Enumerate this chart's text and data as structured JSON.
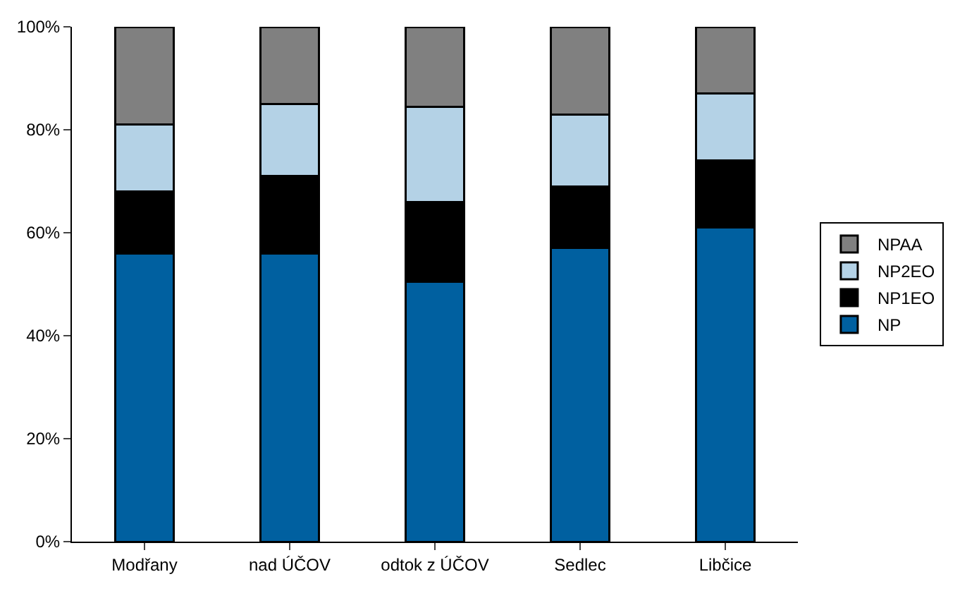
{
  "chart_data": {
    "type": "bar",
    "stacked": true,
    "categories": [
      "Modřany",
      "nad ÚČOV",
      "odtok z ÚČOV",
      "Sedlec",
      "Libčice"
    ],
    "series": [
      {
        "name": "NP",
        "color": "#0060a0",
        "values": [
          56,
          56,
          50.5,
          57,
          61
        ]
      },
      {
        "name": "NP1EO",
        "color": "#000000",
        "values": [
          12,
          15,
          15.5,
          12,
          13
        ]
      },
      {
        "name": "NP2EO",
        "color": "#b4d2e6",
        "values": [
          13,
          14,
          18.5,
          14,
          13
        ]
      },
      {
        "name": "NPAA",
        "color": "#808080",
        "values": [
          19,
          15,
          15.5,
          17,
          13
        ]
      }
    ],
    "ylim": [
      0,
      100
    ],
    "yticks": [
      {
        "value": 0,
        "label": "0%"
      },
      {
        "value": 20,
        "label": "20%"
      },
      {
        "value": 40,
        "label": "40%"
      },
      {
        "value": 60,
        "label": "60%"
      },
      {
        "value": 80,
        "label": "80%"
      },
      {
        "value": 100,
        "label": "100%"
      }
    ],
    "legend": "right"
  }
}
